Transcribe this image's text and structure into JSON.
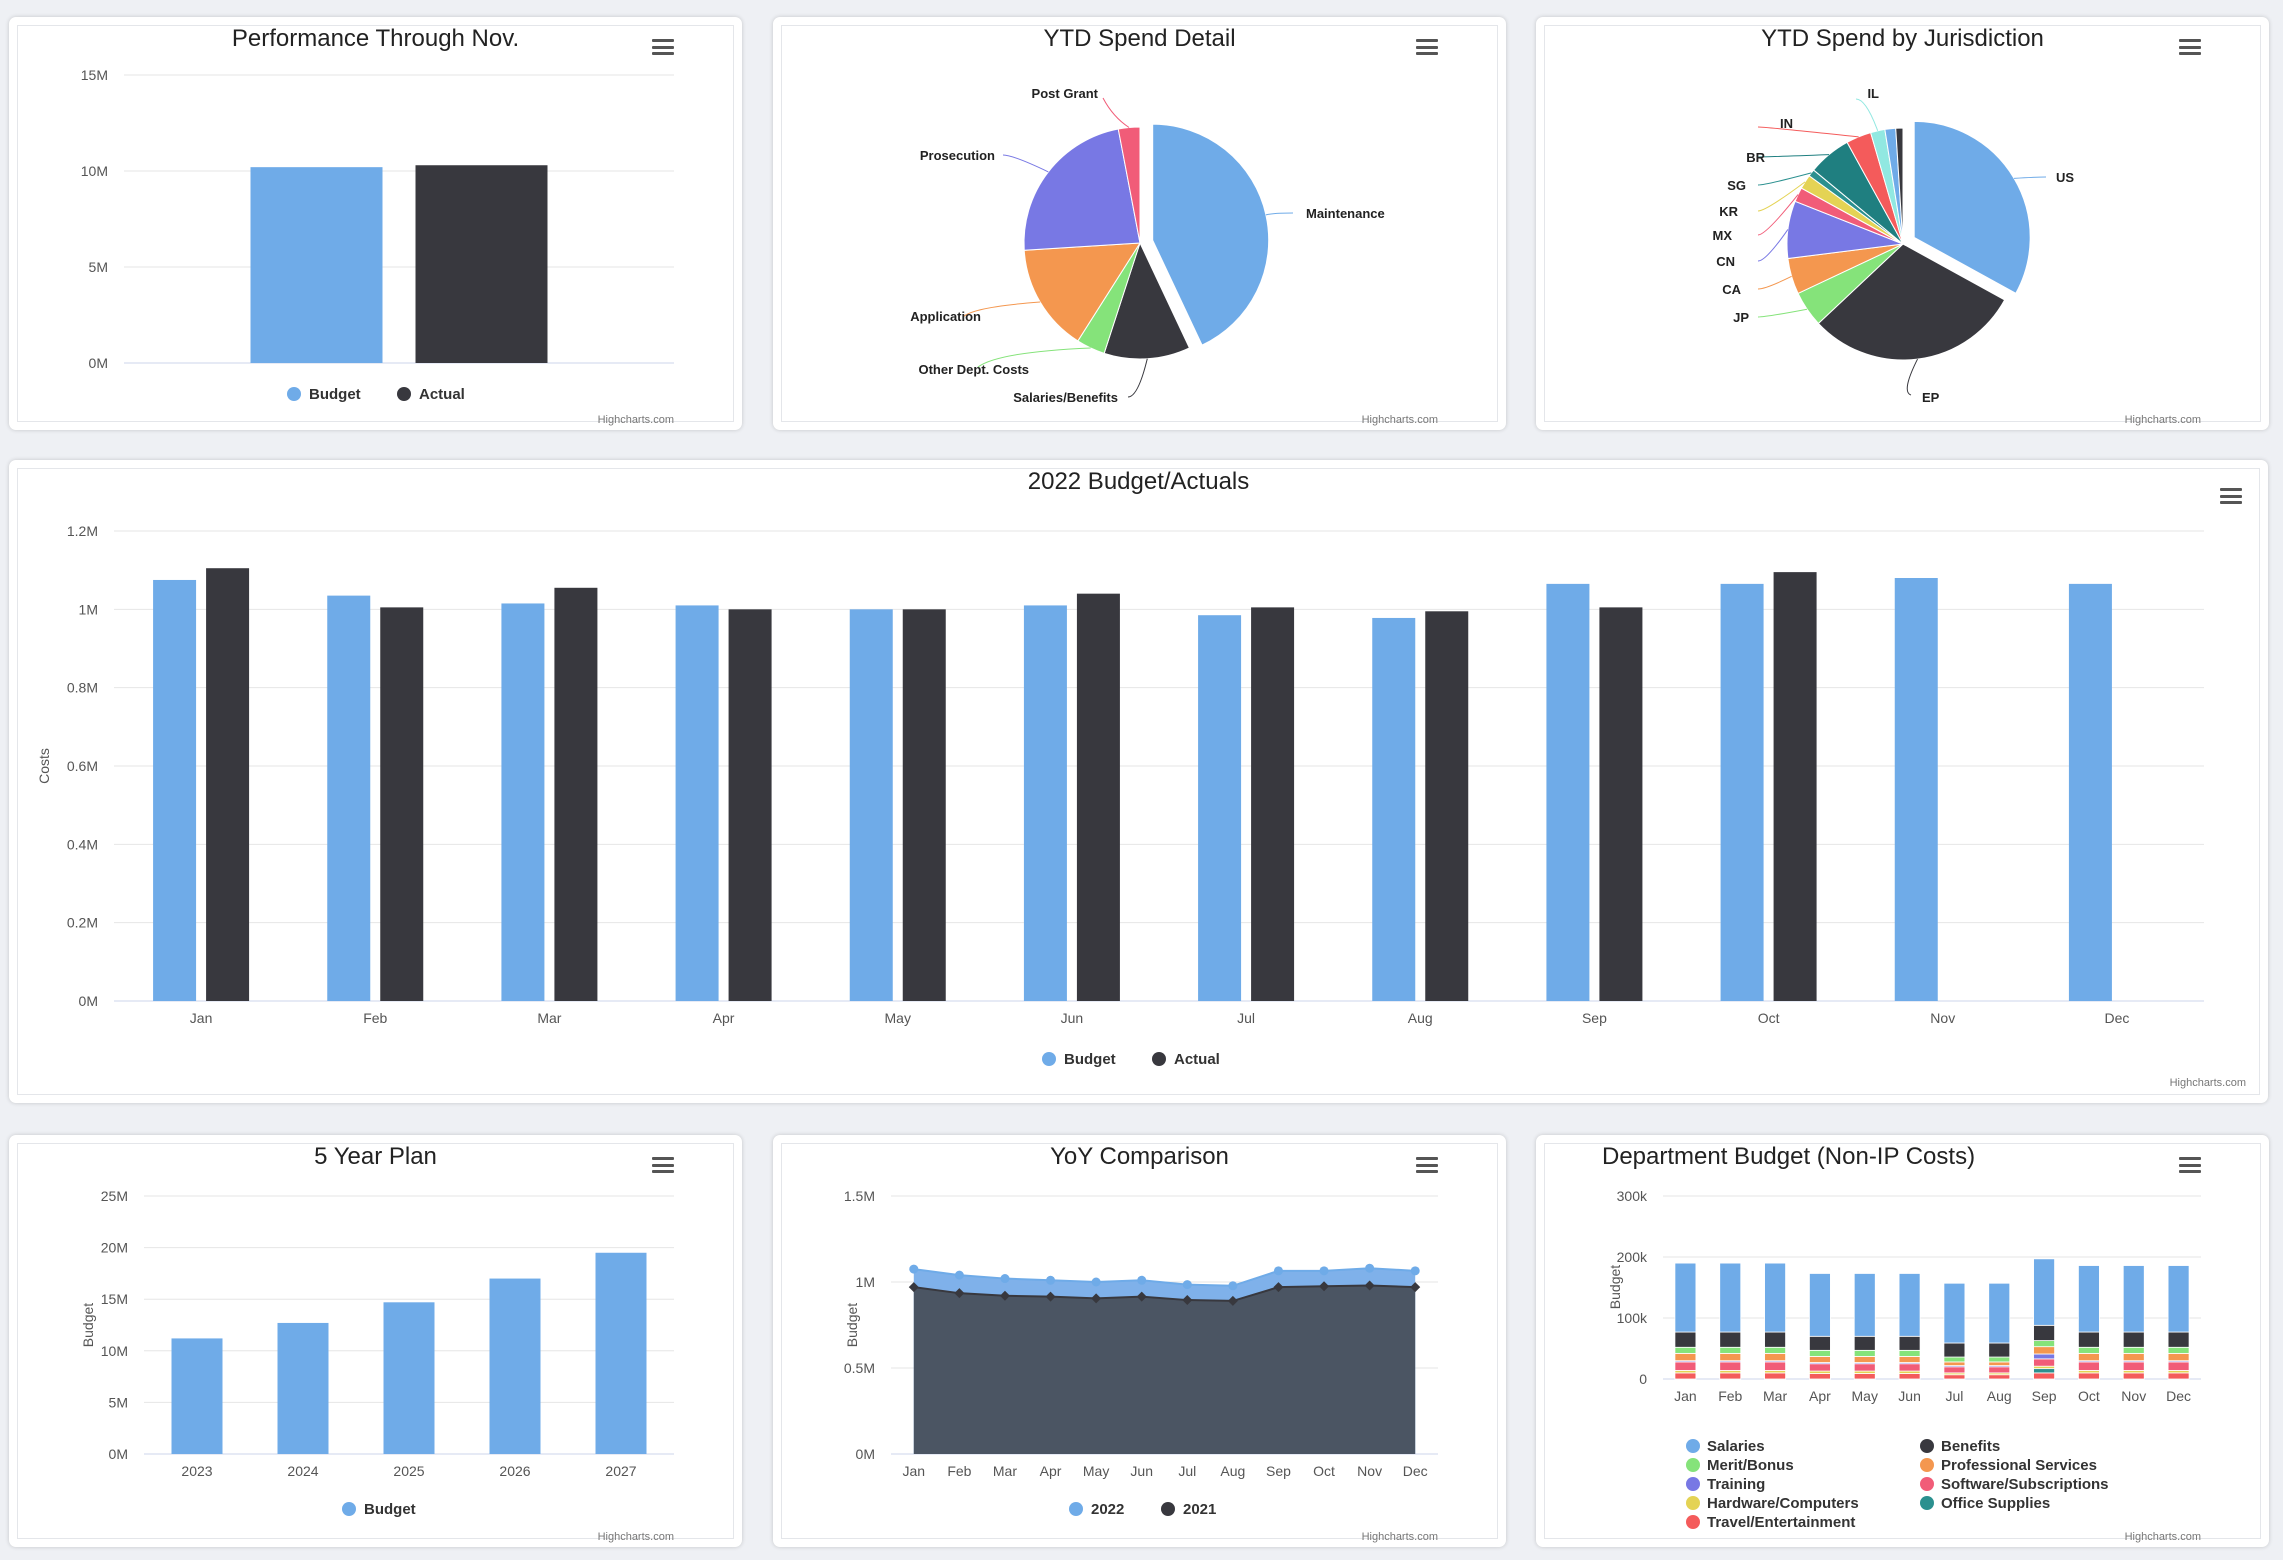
{
  "credit": "Highcharts.com",
  "colors": {
    "budget": "#6fabe8",
    "actual": "#38383e",
    "grid": "#e6e6e6",
    "area2022": "#7fb1ea",
    "area2021": "#4b5563"
  },
  "panels": {
    "perf": {
      "title": "Performance Through Nov."
    },
    "spend": {
      "title": "YTD Spend Detail"
    },
    "jur": {
      "title": "YTD Spend by Jurisdiction"
    },
    "main": {
      "title": "2022 Budget/Actuals"
    },
    "plan": {
      "title": "5 Year Plan"
    },
    "yoy": {
      "title": "YoY Comparison"
    },
    "dept": {
      "title": "Department Budget (Non-IP Costs)"
    }
  },
  "chart_data": [
    {
      "id": "perf",
      "type": "bar",
      "title": "Performance Through Nov.",
      "categories": [
        ""
      ],
      "series": [
        {
          "name": "Budget",
          "color": "#6fabe8",
          "values": [
            10200000
          ]
        },
        {
          "name": "Actual",
          "color": "#38383e",
          "values": [
            10300000
          ]
        }
      ],
      "yticks": [
        "0M",
        "5M",
        "10M",
        "15M"
      ],
      "ylim": [
        0,
        15000000
      ],
      "legend": "bottom",
      "grid": true
    },
    {
      "id": "spend",
      "type": "pie",
      "title": "YTD Spend Detail",
      "slices": [
        {
          "label": "Maintenance",
          "value": 43,
          "color": "#6fabe8",
          "sliced": true
        },
        {
          "label": "Salaries/Benefits",
          "value": 12,
          "color": "#38383e"
        },
        {
          "label": "Other Dept. Costs",
          "value": 4,
          "color": "#85e37a"
        },
        {
          "label": "Application",
          "value": 15,
          "color": "#f4974f"
        },
        {
          "label": "Prosecution",
          "value": 23,
          "color": "#7878e4"
        },
        {
          "label": "Post Grant",
          "value": 3,
          "color": "#f15c78"
        }
      ]
    },
    {
      "id": "jur",
      "type": "pie",
      "title": "YTD Spend by Jurisdiction",
      "slices": [
        {
          "label": "US",
          "value": 33,
          "color": "#6fabe8",
          "sliced": true
        },
        {
          "label": "EP",
          "value": 30,
          "color": "#38383e"
        },
        {
          "label": "JP",
          "value": 5,
          "color": "#85e37a"
        },
        {
          "label": "CA",
          "value": 5,
          "color": "#f4974f"
        },
        {
          "label": "CN",
          "value": 8,
          "color": "#7878e4"
        },
        {
          "label": "MX",
          "value": 2,
          "color": "#f15c78"
        },
        {
          "label": "KR",
          "value": 2,
          "color": "#e4d354"
        },
        {
          "label": "SG",
          "value": 1,
          "color": "#2b908f"
        },
        {
          "label": "BR",
          "value": 6,
          "color": "#1f7f80"
        },
        {
          "label": "IN",
          "value": 3.5,
          "color": "#f45b5b"
        },
        {
          "label": "IL",
          "value": 2,
          "color": "#91e8e1"
        },
        {
          "label": "",
          "value": 1.5,
          "color": "#6fabe8"
        },
        {
          "label": "",
          "value": 1,
          "color": "#38383e"
        }
      ]
    },
    {
      "id": "main",
      "type": "bar",
      "title": "2022 Budget/Actuals",
      "ylabel": "Costs",
      "categories": [
        "Jan",
        "Feb",
        "Mar",
        "Apr",
        "May",
        "Jun",
        "Jul",
        "Aug",
        "Sep",
        "Oct",
        "Nov",
        "Dec"
      ],
      "series": [
        {
          "name": "Budget",
          "color": "#6fabe8",
          "values": [
            1075000,
            1035000,
            1015000,
            1010000,
            1000000,
            1010000,
            985000,
            978000,
            1065000,
            1065000,
            1080000,
            1065000
          ]
        },
        {
          "name": "Actual",
          "color": "#38383e",
          "values": [
            1105000,
            1005000,
            1055000,
            1000000,
            1000000,
            1040000,
            1005000,
            995000,
            1005000,
            1095000,
            null,
            null
          ]
        }
      ],
      "yticks": [
        "0M",
        "0.2M",
        "0.4M",
        "0.6M",
        "0.8M",
        "1M",
        "1.2M"
      ],
      "ylim": [
        0,
        1200000
      ],
      "legend": "bottom",
      "grid": true
    },
    {
      "id": "plan",
      "type": "bar",
      "title": "5 Year Plan",
      "ylabel": "Budget",
      "categories": [
        "2023",
        "2024",
        "2025",
        "2026",
        "2027"
      ],
      "series": [
        {
          "name": "Budget",
          "color": "#6fabe8",
          "values": [
            11200000,
            12700000,
            14700000,
            17000000,
            19500000
          ]
        }
      ],
      "yticks": [
        "0M",
        "5M",
        "10M",
        "15M",
        "20M",
        "25M"
      ],
      "ylim": [
        0,
        25000000
      ],
      "legend": "bottom",
      "grid": true
    },
    {
      "id": "yoy",
      "type": "area",
      "title": "YoY Comparison",
      "ylabel": "Budget",
      "categories": [
        "Jan",
        "Feb",
        "Mar",
        "Apr",
        "May",
        "Jun",
        "Jul",
        "Aug",
        "Sep",
        "Oct",
        "Nov",
        "Dec"
      ],
      "series": [
        {
          "name": "2022",
          "color": "#6fabe8",
          "values": [
            1075000,
            1040000,
            1020000,
            1010000,
            1000000,
            1010000,
            985000,
            978000,
            1065000,
            1065000,
            1080000,
            1065000
          ]
        },
        {
          "name": "2021",
          "color": "#38383e",
          "values": [
            970000,
            935000,
            920000,
            915000,
            905000,
            915000,
            895000,
            890000,
            970000,
            975000,
            980000,
            970000
          ]
        }
      ],
      "yticks": [
        "0M",
        "0.5M",
        "1M",
        "1.5M"
      ],
      "ylim": [
        0,
        1500000
      ],
      "legend": "bottom",
      "grid": true
    },
    {
      "id": "dept",
      "type": "bar",
      "stacked": true,
      "title": "Department Budget (Non-IP Costs)",
      "ylabel": "Budget",
      "categories": [
        "Jan",
        "Feb",
        "Mar",
        "Apr",
        "May",
        "Jun",
        "Jul",
        "Aug",
        "Sep",
        "Oct",
        "Nov",
        "Dec"
      ],
      "series": [
        {
          "name": "Travel/Entertainment",
          "color": "#f45b5b",
          "values": [
            10000,
            10000,
            10000,
            9000,
            9000,
            9000,
            7000,
            7000,
            10000,
            10000,
            10000,
            10000
          ]
        },
        {
          "name": "Office Supplies",
          "color": "#2b908f",
          "values": [
            0,
            0,
            0,
            0,
            0,
            0,
            0,
            0,
            7000,
            0,
            0,
            0
          ]
        },
        {
          "name": "Hardware/Computers",
          "color": "#e4d354",
          "values": [
            4000,
            4000,
            4000,
            4000,
            4000,
            4000,
            3000,
            3000,
            4000,
            4000,
            4000,
            4000
          ]
        },
        {
          "name": "Software/Subscriptions",
          "color": "#f15c78",
          "values": [
            14000,
            14000,
            14000,
            12000,
            12000,
            12000,
            10000,
            10000,
            12000,
            14000,
            14000,
            14000
          ]
        },
        {
          "name": "Training",
          "color": "#7878e4",
          "values": [
            2000,
            2000,
            2000,
            2000,
            2000,
            2000,
            2000,
            2000,
            8000,
            2000,
            2000,
            2000
          ]
        },
        {
          "name": "Professional Services",
          "color": "#f4974f",
          "values": [
            12000,
            12000,
            12000,
            10000,
            10000,
            10000,
            6000,
            6000,
            12000,
            12000,
            12000,
            12000
          ]
        },
        {
          "name": "Merit/Bonus",
          "color": "#85e37a",
          "values": [
            10000,
            10000,
            10000,
            10000,
            10000,
            10000,
            8000,
            8000,
            10000,
            10000,
            10000,
            10000
          ]
        },
        {
          "name": "Benefits",
          "color": "#38383e",
          "values": [
            25000,
            25000,
            25000,
            23000,
            23000,
            23000,
            23000,
            23000,
            25000,
            25000,
            25000,
            25000
          ]
        },
        {
          "name": "Salaries",
          "color": "#6fabe8",
          "values": [
            113000,
            113000,
            113000,
            103000,
            103000,
            103000,
            98000,
            98000,
            109000,
            109000,
            109000,
            109000
          ]
        }
      ],
      "yticks": [
        "0",
        "100k",
        "200k",
        "300k"
      ],
      "ylim": [
        0,
        300000
      ],
      "grid": true,
      "legend_items": [
        {
          "name": "Salaries",
          "color": "#6fabe8"
        },
        {
          "name": "Benefits",
          "color": "#38383e"
        },
        {
          "name": "Merit/Bonus",
          "color": "#85e37a"
        },
        {
          "name": "Professional Services",
          "color": "#f4974f"
        },
        {
          "name": "Training",
          "color": "#7878e4"
        },
        {
          "name": "Software/Subscriptions",
          "color": "#f15c78"
        },
        {
          "name": "Hardware/Computers",
          "color": "#e4d354"
        },
        {
          "name": "Office Supplies",
          "color": "#2b908f"
        },
        {
          "name": "Travel/Entertainment",
          "color": "#f45b5b"
        }
      ]
    }
  ]
}
